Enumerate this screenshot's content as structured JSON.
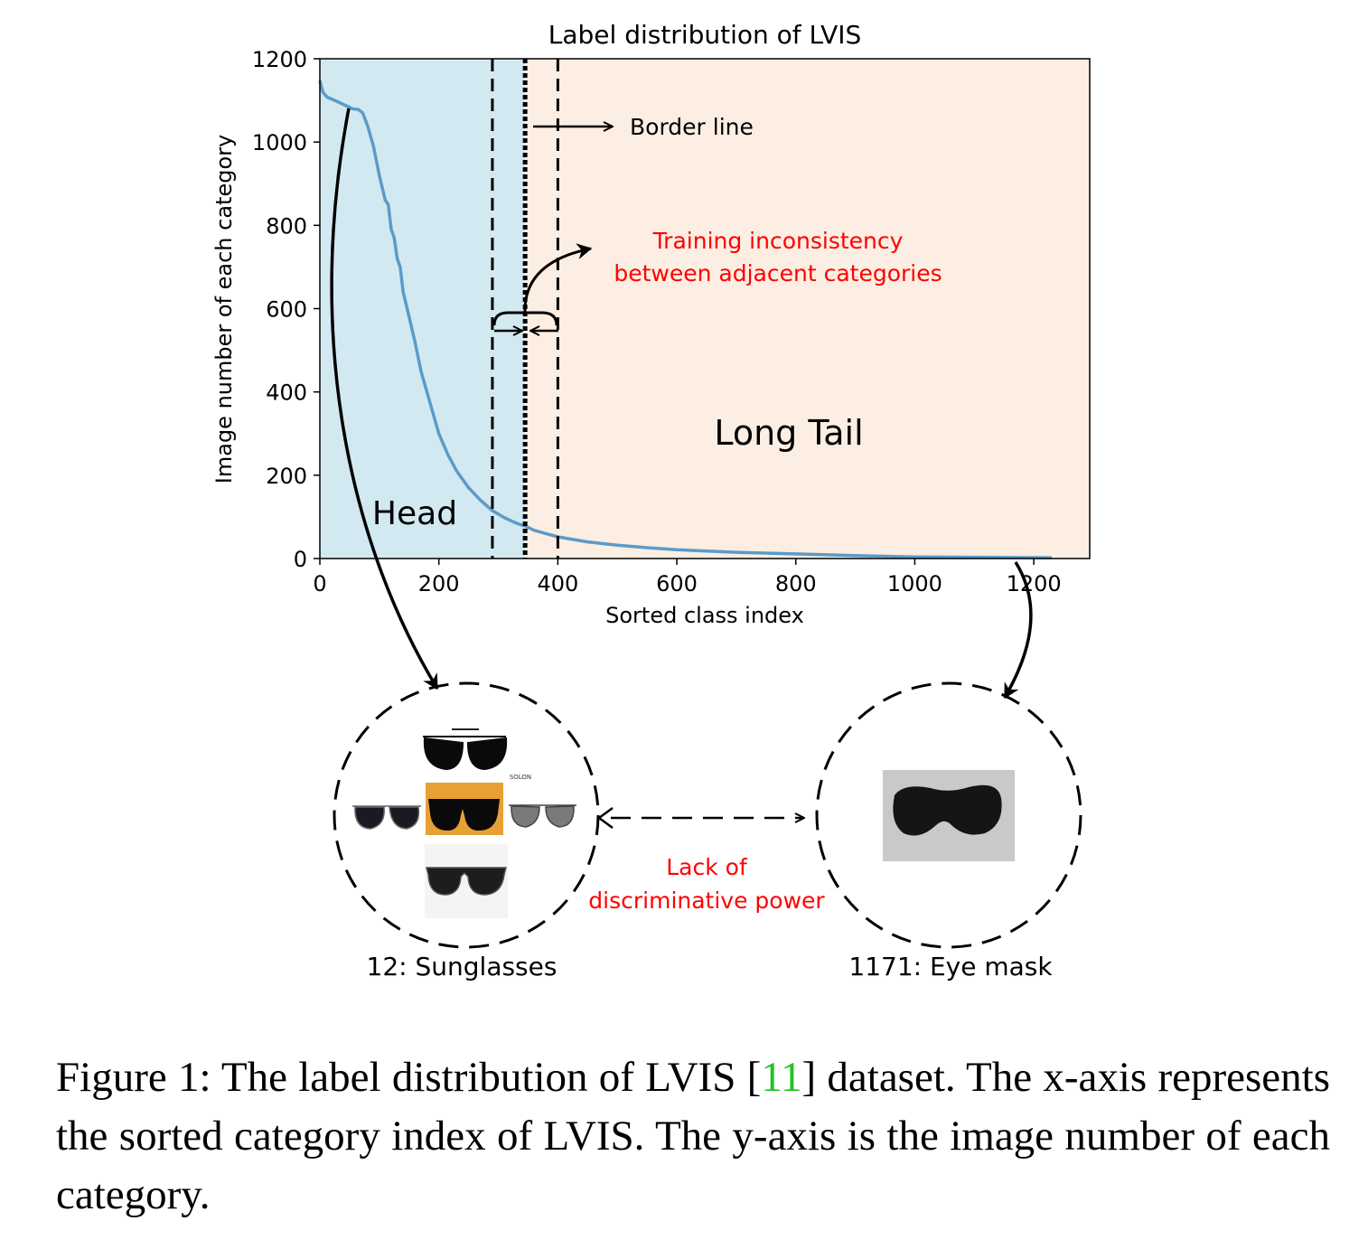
{
  "chart_data": {
    "type": "line",
    "title": "Label distribution of LVIS",
    "xlabel": "Sorted class index",
    "ylabel": "Image number of each category",
    "xlim": [
      0,
      1294
    ],
    "ylim": [
      0,
      1200
    ],
    "xticks": [
      0,
      200,
      400,
      600,
      800,
      1000,
      1200
    ],
    "yticks": [
      0,
      200,
      400,
      600,
      800,
      1000,
      1200
    ],
    "grid": false,
    "series": [
      {
        "color": "#5b9bc9",
        "x": [
          0,
          5,
          12,
          25,
          40,
          55,
          65,
          72,
          80,
          90,
          100,
          110,
          115,
          120,
          125,
          130,
          135,
          140,
          150,
          160,
          170,
          180,
          190,
          200,
          215,
          230,
          250,
          270,
          290,
          310,
          330,
          345,
          360,
          380,
          400,
          450,
          500,
          550,
          600,
          700,
          800,
          900,
          1000,
          1100,
          1230
        ],
        "y": [
          1148,
          1120,
          1108,
          1100,
          1090,
          1080,
          1078,
          1070,
          1040,
          990,
          920,
          860,
          850,
          790,
          770,
          720,
          700,
          640,
          580,
          520,
          450,
          400,
          350,
          300,
          250,
          210,
          170,
          140,
          115,
          98,
          85,
          78,
          68,
          60,
          52,
          40,
          32,
          26,
          21,
          15,
          11,
          7,
          4,
          3,
          2
        ]
      }
    ],
    "regions": [
      {
        "name": "Head",
        "from": 0,
        "to": 345,
        "color": "#d3e9f1"
      },
      {
        "name": "Long Tail",
        "from": 345,
        "to": 1294,
        "color": "#fceee3"
      }
    ],
    "vlines": [
      {
        "x": 290,
        "style": "dashed"
      },
      {
        "x": 345,
        "style": "dotted"
      },
      {
        "x": 400,
        "style": "dashed"
      }
    ],
    "annotations": {
      "border_line": "Border line",
      "inconsistency_line1": "Training inconsistency",
      "inconsistency_line2": "between adjacent categories",
      "head": "Head",
      "long_tail": "Long Tail",
      "lack_line1": "Lack of",
      "lack_line2": "discriminative power",
      "accent_color": "#ff0000"
    },
    "examples": [
      {
        "index": 12,
        "label": "12: Sunglasses"
      },
      {
        "index": 1171,
        "label": "1171: Eye mask"
      }
    ],
    "solon_text": "SOLON"
  },
  "caption": {
    "part1": "Figure 1: The label distribution of LVIS [",
    "ref": "11",
    "part2": "] dataset. The x-axis represents the sorted category index of LVIS. The y-axis is the image number of each category."
  }
}
